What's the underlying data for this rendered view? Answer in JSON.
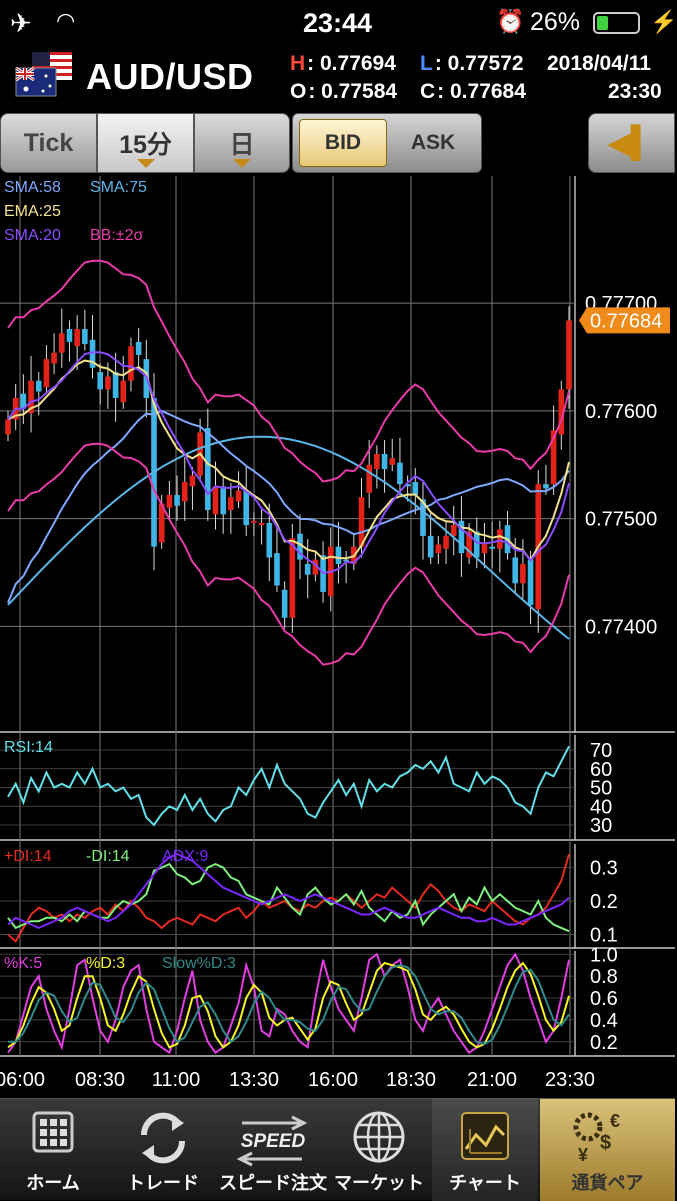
{
  "status_bar": {
    "time": "23:44",
    "battery_text": "26%",
    "battery_level": 0.26
  },
  "header": {
    "pair": "AUD/USD",
    "high_label": "H",
    "high_value": ": 0.77694",
    "low_label": "L",
    "low_value": ": 0.77572",
    "date": "2018/04/11",
    "open_label": "O",
    "open_value": ": 0.77584",
    "close_label": "C",
    "close_value": ": 0.77684",
    "time": "23:30"
  },
  "toolbar": {
    "tick_label": "Tick",
    "interval_label": "15分",
    "day_label": "日",
    "bid_label": "BID",
    "ask_label": "ASK",
    "selected_side": "BID"
  },
  "chart_data": [
    {
      "type": "candlestick",
      "title": "",
      "indicators": [
        "SMA:58",
        "SMA:75",
        "EMA:25",
        "SMA:20",
        "BB:±2σ"
      ],
      "indicator_colors": {
        "SMA:58": "#7fa8ff",
        "SMA:75": "#5ab6e8",
        "EMA:25": "#f2e08a",
        "SMA:20": "#8a4cff",
        "BB:±2σ": "#e83aa8"
      },
      "y_ticks": [
        "0.77700",
        "0.77600",
        "0.77500",
        "0.77400"
      ],
      "ylim": [
        0.77302,
        0.77818
      ],
      "current_price": "0.77684",
      "x_ticks": [
        "06:00",
        "08:30",
        "11:00",
        "13:30",
        "16:00",
        "18:30",
        "21:00",
        "23:30"
      ],
      "bull_color": "#e2231a",
      "bear_color": "#3fb6e6"
    },
    {
      "type": "line",
      "title": "RSI:14",
      "y_ticks": [
        "70",
        "60",
        "50",
        "40",
        "30"
      ],
      "ylim": [
        22,
        78
      ],
      "series": [
        {
          "name": "RSI:14",
          "color": "#5fe0e8",
          "values": [
            45,
            52,
            42,
            55,
            48,
            58,
            50,
            52,
            50,
            58,
            52,
            60,
            50,
            52,
            48,
            50,
            44,
            46,
            34,
            30,
            36,
            40,
            38,
            46,
            38,
            44,
            36,
            32,
            38,
            40,
            50,
            46,
            54,
            60,
            50,
            62,
            52,
            48,
            44,
            36,
            34,
            42,
            48,
            54,
            46,
            52,
            40,
            54,
            48,
            52,
            50,
            56,
            58,
            62,
            60,
            64,
            58,
            66,
            52,
            50,
            48,
            58,
            52,
            56,
            54,
            50,
            42,
            40,
            36,
            50,
            58,
            56,
            64,
            72
          ]
        }
      ]
    },
    {
      "type": "line",
      "title": "",
      "legend": [
        "+DI:14",
        "-DI:14",
        "ADX:9"
      ],
      "y_ticks": [
        "0.3",
        "0.2",
        "0.1"
      ],
      "ylim": [
        0.06,
        0.37
      ],
      "series": [
        {
          "name": "+DI:14",
          "color": "#e62b1e",
          "values": [
            0.1,
            0.08,
            0.12,
            0.16,
            0.18,
            0.17,
            0.15,
            0.16,
            0.14,
            0.16,
            0.15,
            0.17,
            0.18,
            0.16,
            0.19,
            0.17,
            0.2,
            0.18,
            0.15,
            0.14,
            0.12,
            0.14,
            0.15,
            0.14,
            0.13,
            0.16,
            0.15,
            0.14,
            0.16,
            0.17,
            0.18,
            0.15,
            0.17,
            0.2,
            0.18,
            0.19,
            0.2,
            0.18,
            0.17,
            0.19,
            0.18,
            0.2,
            0.21,
            0.2,
            0.22,
            0.2,
            0.18,
            0.2,
            0.22,
            0.21,
            0.24,
            0.22,
            0.2,
            0.18,
            0.22,
            0.25,
            0.23,
            0.2,
            0.18,
            0.17,
            0.19,
            0.18,
            0.17,
            0.2,
            0.18,
            0.16,
            0.14,
            0.13,
            0.15,
            0.16,
            0.18,
            0.22,
            0.26,
            0.34
          ]
        },
        {
          "name": "-DI:14",
          "color": "#7ef07e",
          "values": [
            0.15,
            0.12,
            0.13,
            0.14,
            0.14,
            0.15,
            0.15,
            0.14,
            0.16,
            0.14,
            0.17,
            0.16,
            0.15,
            0.15,
            0.18,
            0.2,
            0.19,
            0.2,
            0.22,
            0.29,
            0.3,
            0.31,
            0.28,
            0.27,
            0.25,
            0.26,
            0.3,
            0.31,
            0.3,
            0.27,
            0.26,
            0.22,
            0.21,
            0.2,
            0.19,
            0.24,
            0.21,
            0.18,
            0.16,
            0.22,
            0.24,
            0.21,
            0.19,
            0.2,
            0.22,
            0.19,
            0.23,
            0.18,
            0.16,
            0.14,
            0.17,
            0.15,
            0.16,
            0.2,
            0.13,
            0.16,
            0.18,
            0.2,
            0.22,
            0.17,
            0.21,
            0.19,
            0.24,
            0.2,
            0.22,
            0.2,
            0.18,
            0.17,
            0.16,
            0.2,
            0.15,
            0.13,
            0.12,
            0.11
          ]
        },
        {
          "name": "ADX:9",
          "color": "#7d26ff",
          "values": [
            0.13,
            0.15,
            0.14,
            0.13,
            0.12,
            0.13,
            0.14,
            0.15,
            0.17,
            0.18,
            0.17,
            0.16,
            0.15,
            0.14,
            0.15,
            0.17,
            0.19,
            0.22,
            0.25,
            0.28,
            0.31,
            0.33,
            0.34,
            0.33,
            0.32,
            0.3,
            0.28,
            0.26,
            0.24,
            0.23,
            0.22,
            0.21,
            0.2,
            0.19,
            0.2,
            0.21,
            0.22,
            0.21,
            0.2,
            0.21,
            0.22,
            0.21,
            0.2,
            0.19,
            0.18,
            0.17,
            0.16,
            0.16,
            0.17,
            0.18,
            0.17,
            0.16,
            0.15,
            0.15,
            0.16,
            0.17,
            0.18,
            0.17,
            0.16,
            0.15,
            0.15,
            0.14,
            0.14,
            0.15,
            0.14,
            0.13,
            0.13,
            0.14,
            0.15,
            0.16,
            0.17,
            0.18,
            0.19,
            0.21
          ]
        }
      ]
    },
    {
      "type": "line",
      "title": "",
      "legend": [
        "%K:5",
        "%D:3",
        "Slow%D:3"
      ],
      "y_ticks": [
        "1.0",
        "0.8",
        "0.6",
        "0.4",
        "0.2"
      ],
      "ylim": [
        0.07,
        1.03
      ],
      "series": [
        {
          "name": "%K:5",
          "color": "#e23de2",
          "values": [
            0.1,
            0.2,
            0.45,
            0.7,
            0.8,
            0.5,
            0.3,
            0.15,
            0.5,
            0.9,
            0.95,
            0.6,
            0.3,
            0.2,
            0.4,
            0.7,
            0.85,
            0.9,
            0.5,
            0.2,
            0.15,
            0.1,
            0.3,
            0.6,
            0.85,
            0.4,
            0.2,
            0.1,
            0.15,
            0.35,
            0.55,
            0.9,
            0.7,
            0.3,
            0.25,
            0.5,
            0.45,
            0.3,
            0.2,
            0.15,
            0.6,
            0.95,
            0.7,
            0.5,
            0.4,
            0.3,
            0.6,
            0.95,
            1.0,
            0.8,
            0.9,
            0.95,
            0.7,
            0.4,
            0.3,
            0.5,
            0.6,
            0.45,
            0.3,
            0.2,
            0.1,
            0.15,
            0.3,
            0.5,
            0.7,
            0.9,
            1.0,
            0.85,
            0.6,
            0.4,
            0.2,
            0.3,
            0.6,
            0.95
          ]
        },
        {
          "name": "%D:3",
          "color": "#f5f520",
          "values": [
            0.15,
            0.2,
            0.35,
            0.55,
            0.7,
            0.65,
            0.5,
            0.3,
            0.35,
            0.6,
            0.8,
            0.8,
            0.6,
            0.35,
            0.3,
            0.45,
            0.65,
            0.8,
            0.75,
            0.5,
            0.28,
            0.15,
            0.18,
            0.35,
            0.6,
            0.62,
            0.48,
            0.25,
            0.15,
            0.2,
            0.35,
            0.6,
            0.72,
            0.65,
            0.42,
            0.35,
            0.4,
            0.42,
            0.32,
            0.22,
            0.32,
            0.6,
            0.75,
            0.72,
            0.55,
            0.4,
            0.45,
            0.65,
            0.85,
            0.92,
            0.9,
            0.88,
            0.85,
            0.68,
            0.45,
            0.4,
            0.48,
            0.52,
            0.45,
            0.32,
            0.2,
            0.15,
            0.18,
            0.32,
            0.5,
            0.7,
            0.85,
            0.92,
            0.82,
            0.62,
            0.4,
            0.3,
            0.38,
            0.62
          ]
        },
        {
          "name": "Slow%D:3",
          "color": "#2e8b8b",
          "values": [
            0.2,
            0.2,
            0.28,
            0.42,
            0.58,
            0.65,
            0.62,
            0.48,
            0.38,
            0.42,
            0.6,
            0.74,
            0.72,
            0.58,
            0.42,
            0.38,
            0.48,
            0.65,
            0.74,
            0.68,
            0.5,
            0.32,
            0.2,
            0.24,
            0.38,
            0.52,
            0.56,
            0.45,
            0.3,
            0.2,
            0.25,
            0.38,
            0.55,
            0.66,
            0.6,
            0.48,
            0.4,
            0.4,
            0.38,
            0.32,
            0.3,
            0.4,
            0.58,
            0.7,
            0.68,
            0.56,
            0.48,
            0.5,
            0.66,
            0.8,
            0.88,
            0.9,
            0.88,
            0.8,
            0.65,
            0.5,
            0.45,
            0.48,
            0.48,
            0.42,
            0.3,
            0.2,
            0.18,
            0.22,
            0.35,
            0.52,
            0.7,
            0.84,
            0.86,
            0.76,
            0.58,
            0.4,
            0.35,
            0.45
          ]
        }
      ]
    }
  ],
  "tabs": [
    {
      "label": "ホーム",
      "icon": "grid-icon"
    },
    {
      "label": "トレード",
      "icon": "refresh-arrows-icon"
    },
    {
      "label": "スピード注文",
      "icon": "speed-icon",
      "icon_text": "SPEED"
    },
    {
      "label": "マーケット",
      "icon": "globe-icon"
    },
    {
      "label": "チャート",
      "icon": "chart-icon"
    },
    {
      "label": "通貨ペア",
      "icon": "currency-gear-icon"
    }
  ]
}
